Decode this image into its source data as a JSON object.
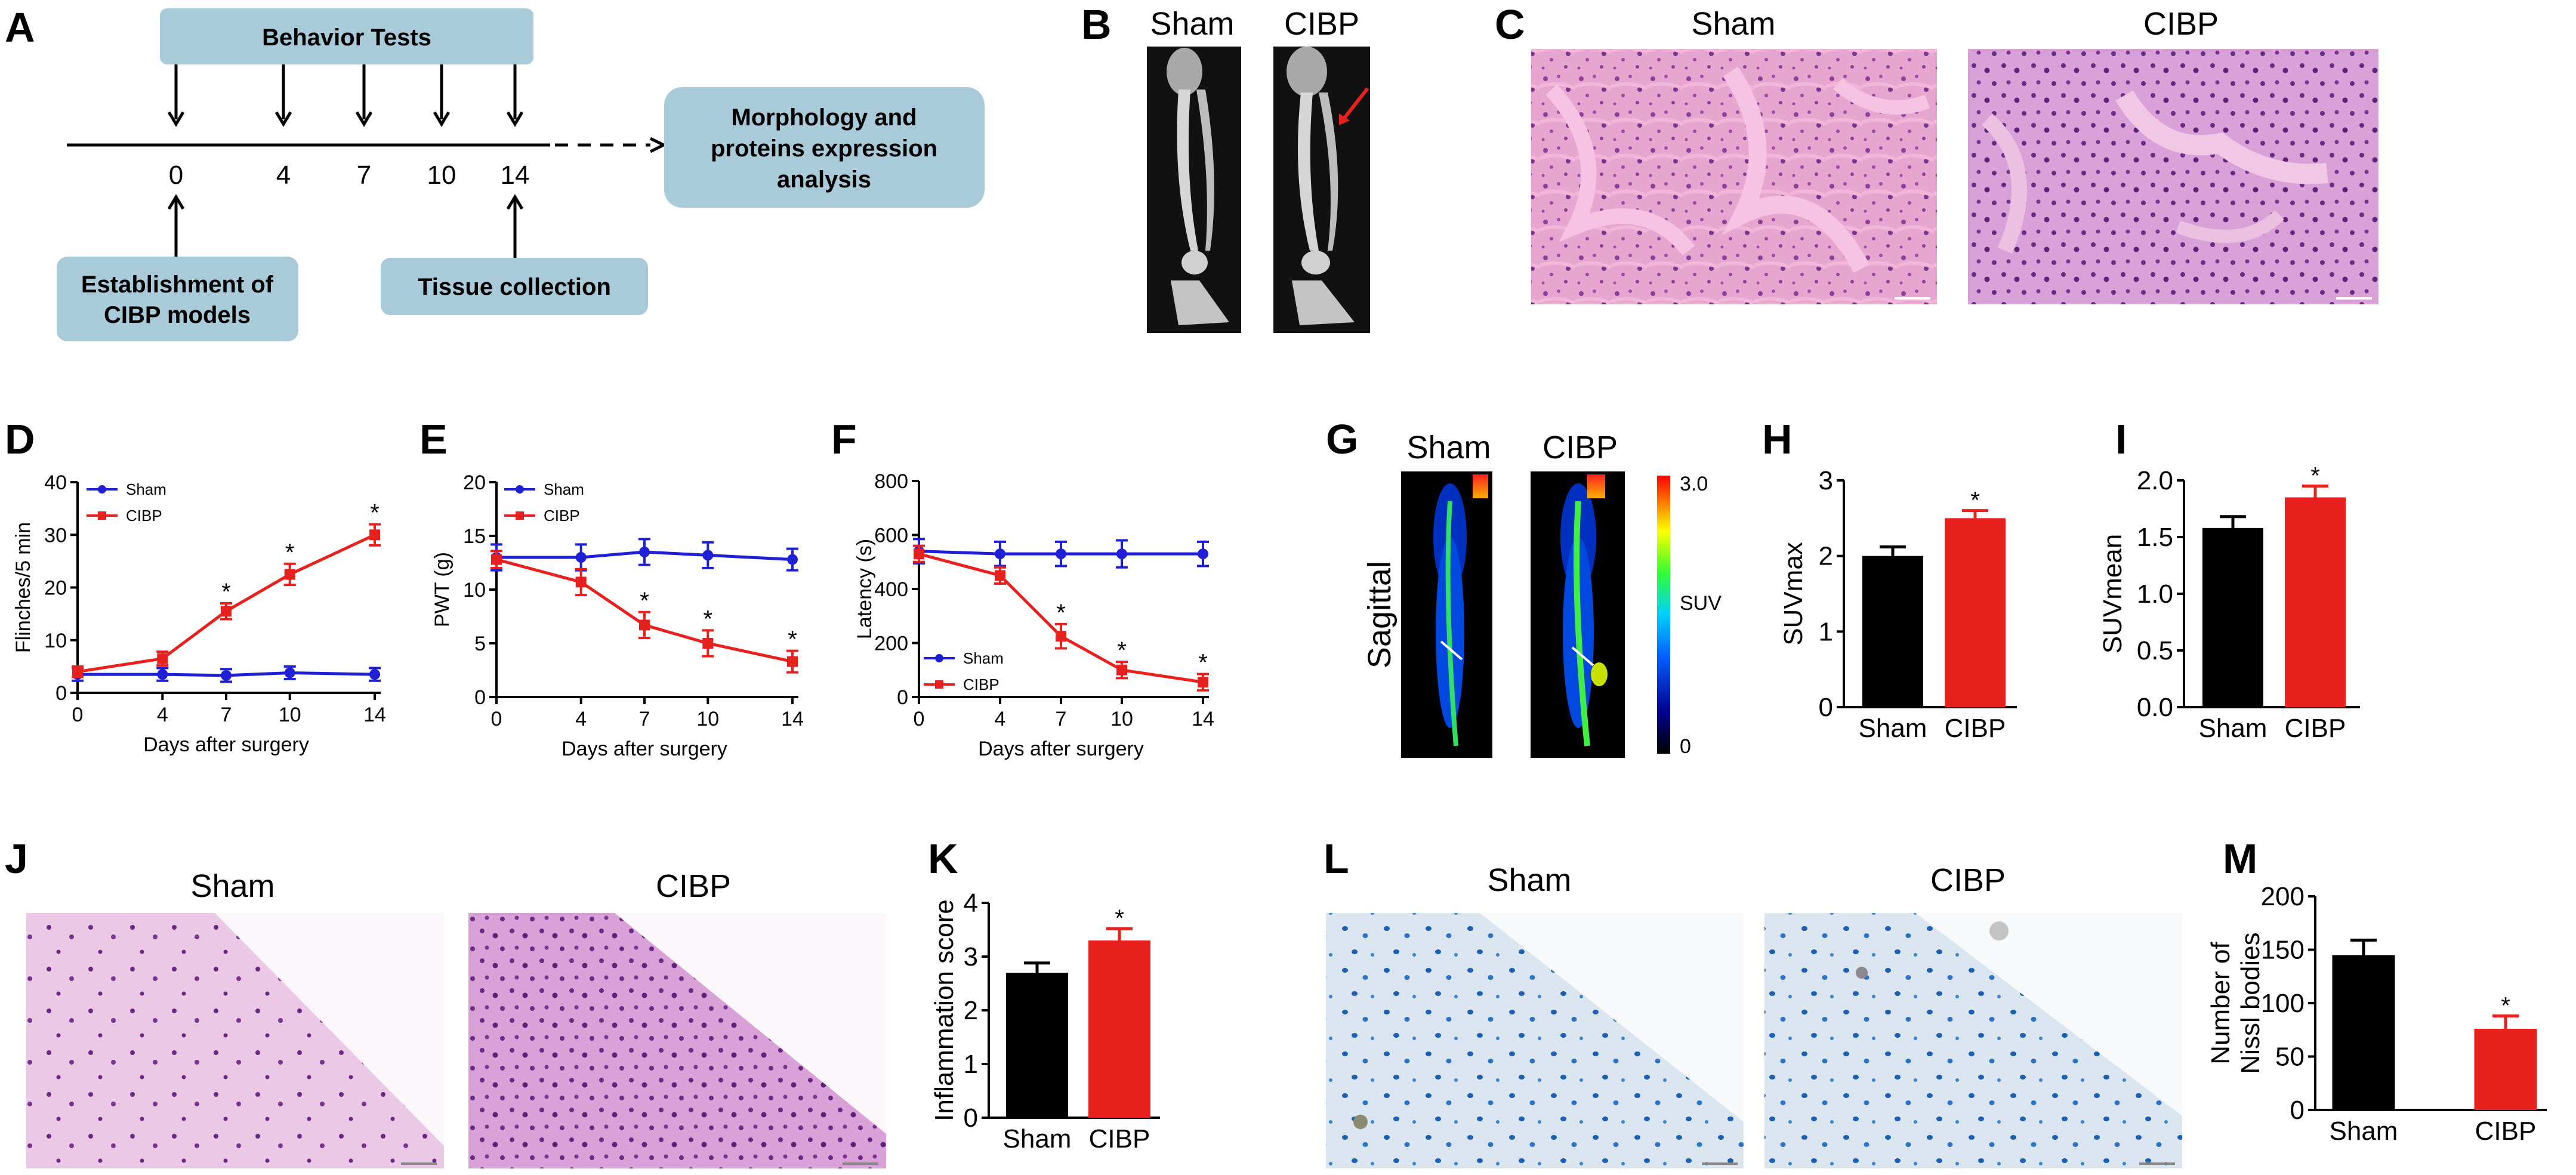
{
  "panel_labels": [
    "A",
    "B",
    "C",
    "D",
    "E",
    "F",
    "G",
    "H",
    "I",
    "J",
    "K",
    "L",
    "M"
  ],
  "panelA": {
    "header": "Behavior Tests",
    "days": [
      "0",
      "4",
      "7",
      "10",
      "14"
    ],
    "box_right": [
      "Morphology and",
      "proteins expression",
      "analysis"
    ],
    "box_left": [
      "Establishment of",
      "CIBP models"
    ],
    "box_tissue": "Tissue collection"
  },
  "groups": {
    "sham": "Sham",
    "cibp": "CIBP"
  },
  "colors": {
    "sham": "#1f1fd6",
    "cibp": "#e8201e",
    "black": "#000000",
    "box": "#a9cbd9"
  },
  "panelG": {
    "sagittal": "Sagittal",
    "scale_max": "3.0",
    "scale_unit": "SUV",
    "scale_min": "0"
  },
  "significance": "*",
  "chart_data": [
    {
      "id": "D",
      "type": "line",
      "x": [
        0,
        4,
        7,
        10,
        14
      ],
      "xticks": [
        "0",
        "4",
        "7",
        "10",
        "14"
      ],
      "xlabel": "Days after surgery",
      "ylabel": "Flinches/5 min",
      "ylim": [
        0,
        40
      ],
      "yticks": [
        "0",
        "10",
        "20",
        "30",
        "40"
      ],
      "legend": "top-left",
      "series": [
        {
          "name": "Sham",
          "color": "#1f1fd6",
          "values": [
            3.5,
            3.5,
            3.3,
            3.8,
            3.5
          ],
          "err": [
            1.2,
            1.2,
            1.2,
            1.2,
            1.2
          ],
          "sig": [
            false,
            false,
            false,
            false,
            false
          ]
        },
        {
          "name": "CIBP",
          "color": "#e8201e",
          "values": [
            4,
            6.5,
            15.5,
            22.5,
            30
          ],
          "err": [
            1,
            1.3,
            1.5,
            2,
            2
          ],
          "sig": [
            false,
            false,
            true,
            true,
            true
          ]
        }
      ]
    },
    {
      "id": "E",
      "type": "line",
      "x": [
        0,
        4,
        7,
        10,
        14
      ],
      "xticks": [
        "0",
        "4",
        "7",
        "10",
        "14"
      ],
      "xlabel": "Days after surgery",
      "ylabel": "PWT (g)",
      "ylim": [
        0,
        20
      ],
      "yticks": [
        "0",
        "5",
        "10",
        "15",
        "20"
      ],
      "legend": "top-right",
      "series": [
        {
          "name": "Sham",
          "color": "#1f1fd6",
          "values": [
            13,
            13,
            13.5,
            13.2,
            12.8
          ],
          "err": [
            1.2,
            1.2,
            1.2,
            1.2,
            1
          ]
        },
        {
          "name": "CIBP",
          "color": "#e8201e",
          "values": [
            12.8,
            10.7,
            6.7,
            5,
            3.3
          ],
          "err": [
            0.8,
            1.2,
            1.2,
            1.2,
            1
          ],
          "sig": [
            false,
            false,
            true,
            true,
            true
          ]
        }
      ]
    },
    {
      "id": "F",
      "type": "line",
      "x": [
        0,
        4,
        7,
        10,
        14
      ],
      "xticks": [
        "0",
        "4",
        "7",
        "10",
        "14"
      ],
      "xlabel": "Days after surgery",
      "ylabel": "Latency (s)",
      "ylim": [
        0,
        800
      ],
      "yticks": [
        "0",
        "200",
        "400",
        "600",
        "800"
      ],
      "legend": "bottom-left",
      "series": [
        {
          "name": "Sham",
          "color": "#1f1fd6",
          "values": [
            540,
            530,
            530,
            530,
            530
          ],
          "err": [
            45,
            45,
            45,
            50,
            45
          ]
        },
        {
          "name": "CIBP",
          "color": "#e8201e",
          "values": [
            530,
            450,
            225,
            100,
            55
          ],
          "err": [
            30,
            30,
            45,
            30,
            30
          ],
          "sig": [
            false,
            false,
            true,
            true,
            true
          ]
        }
      ]
    },
    {
      "id": "H",
      "type": "bar",
      "categories": [
        "Sham",
        "CIBP"
      ],
      "values": [
        2.0,
        2.5
      ],
      "err": [
        0.12,
        0.1
      ],
      "colors": [
        "#000000",
        "#e8201e"
      ],
      "ylabel": "SUVmax",
      "ylim": [
        0,
        3
      ],
      "yticks": [
        "0",
        "1",
        "2",
        "3"
      ],
      "sig": [
        false,
        true
      ]
    },
    {
      "id": "I",
      "type": "bar",
      "categories": [
        "Sham",
        "CIBP"
      ],
      "values": [
        1.58,
        1.85
      ],
      "err": [
        0.1,
        0.1
      ],
      "colors": [
        "#000000",
        "#e8201e"
      ],
      "ylabel": "SUVmean",
      "ylim": [
        0,
        2
      ],
      "yticks": [
        "0.0",
        "0.5",
        "1.0",
        "1.5",
        "2.0"
      ],
      "sig": [
        false,
        true
      ]
    },
    {
      "id": "K",
      "type": "bar",
      "categories": [
        "Sham",
        "CIBP"
      ],
      "values": [
        2.7,
        3.3
      ],
      "err": [
        0.18,
        0.22
      ],
      "colors": [
        "#000000",
        "#e8201e"
      ],
      "ylabel": "Inflammation score",
      "ylim": [
        0,
        4
      ],
      "yticks": [
        "0",
        "1",
        "2",
        "3",
        "4"
      ],
      "sig": [
        false,
        true
      ]
    },
    {
      "id": "M",
      "type": "bar",
      "categories": [
        "Sham",
        "CIBP"
      ],
      "values": [
        145,
        76
      ],
      "err": [
        14,
        12
      ],
      "colors": [
        "#000000",
        "#e8201e"
      ],
      "ylabel_lines": [
        "Number of",
        "Nissl bodies"
      ],
      "ylim": [
        0,
        200
      ],
      "yticks": [
        "0",
        "50",
        "100",
        "150",
        "200"
      ],
      "sig": [
        false,
        true
      ]
    }
  ]
}
